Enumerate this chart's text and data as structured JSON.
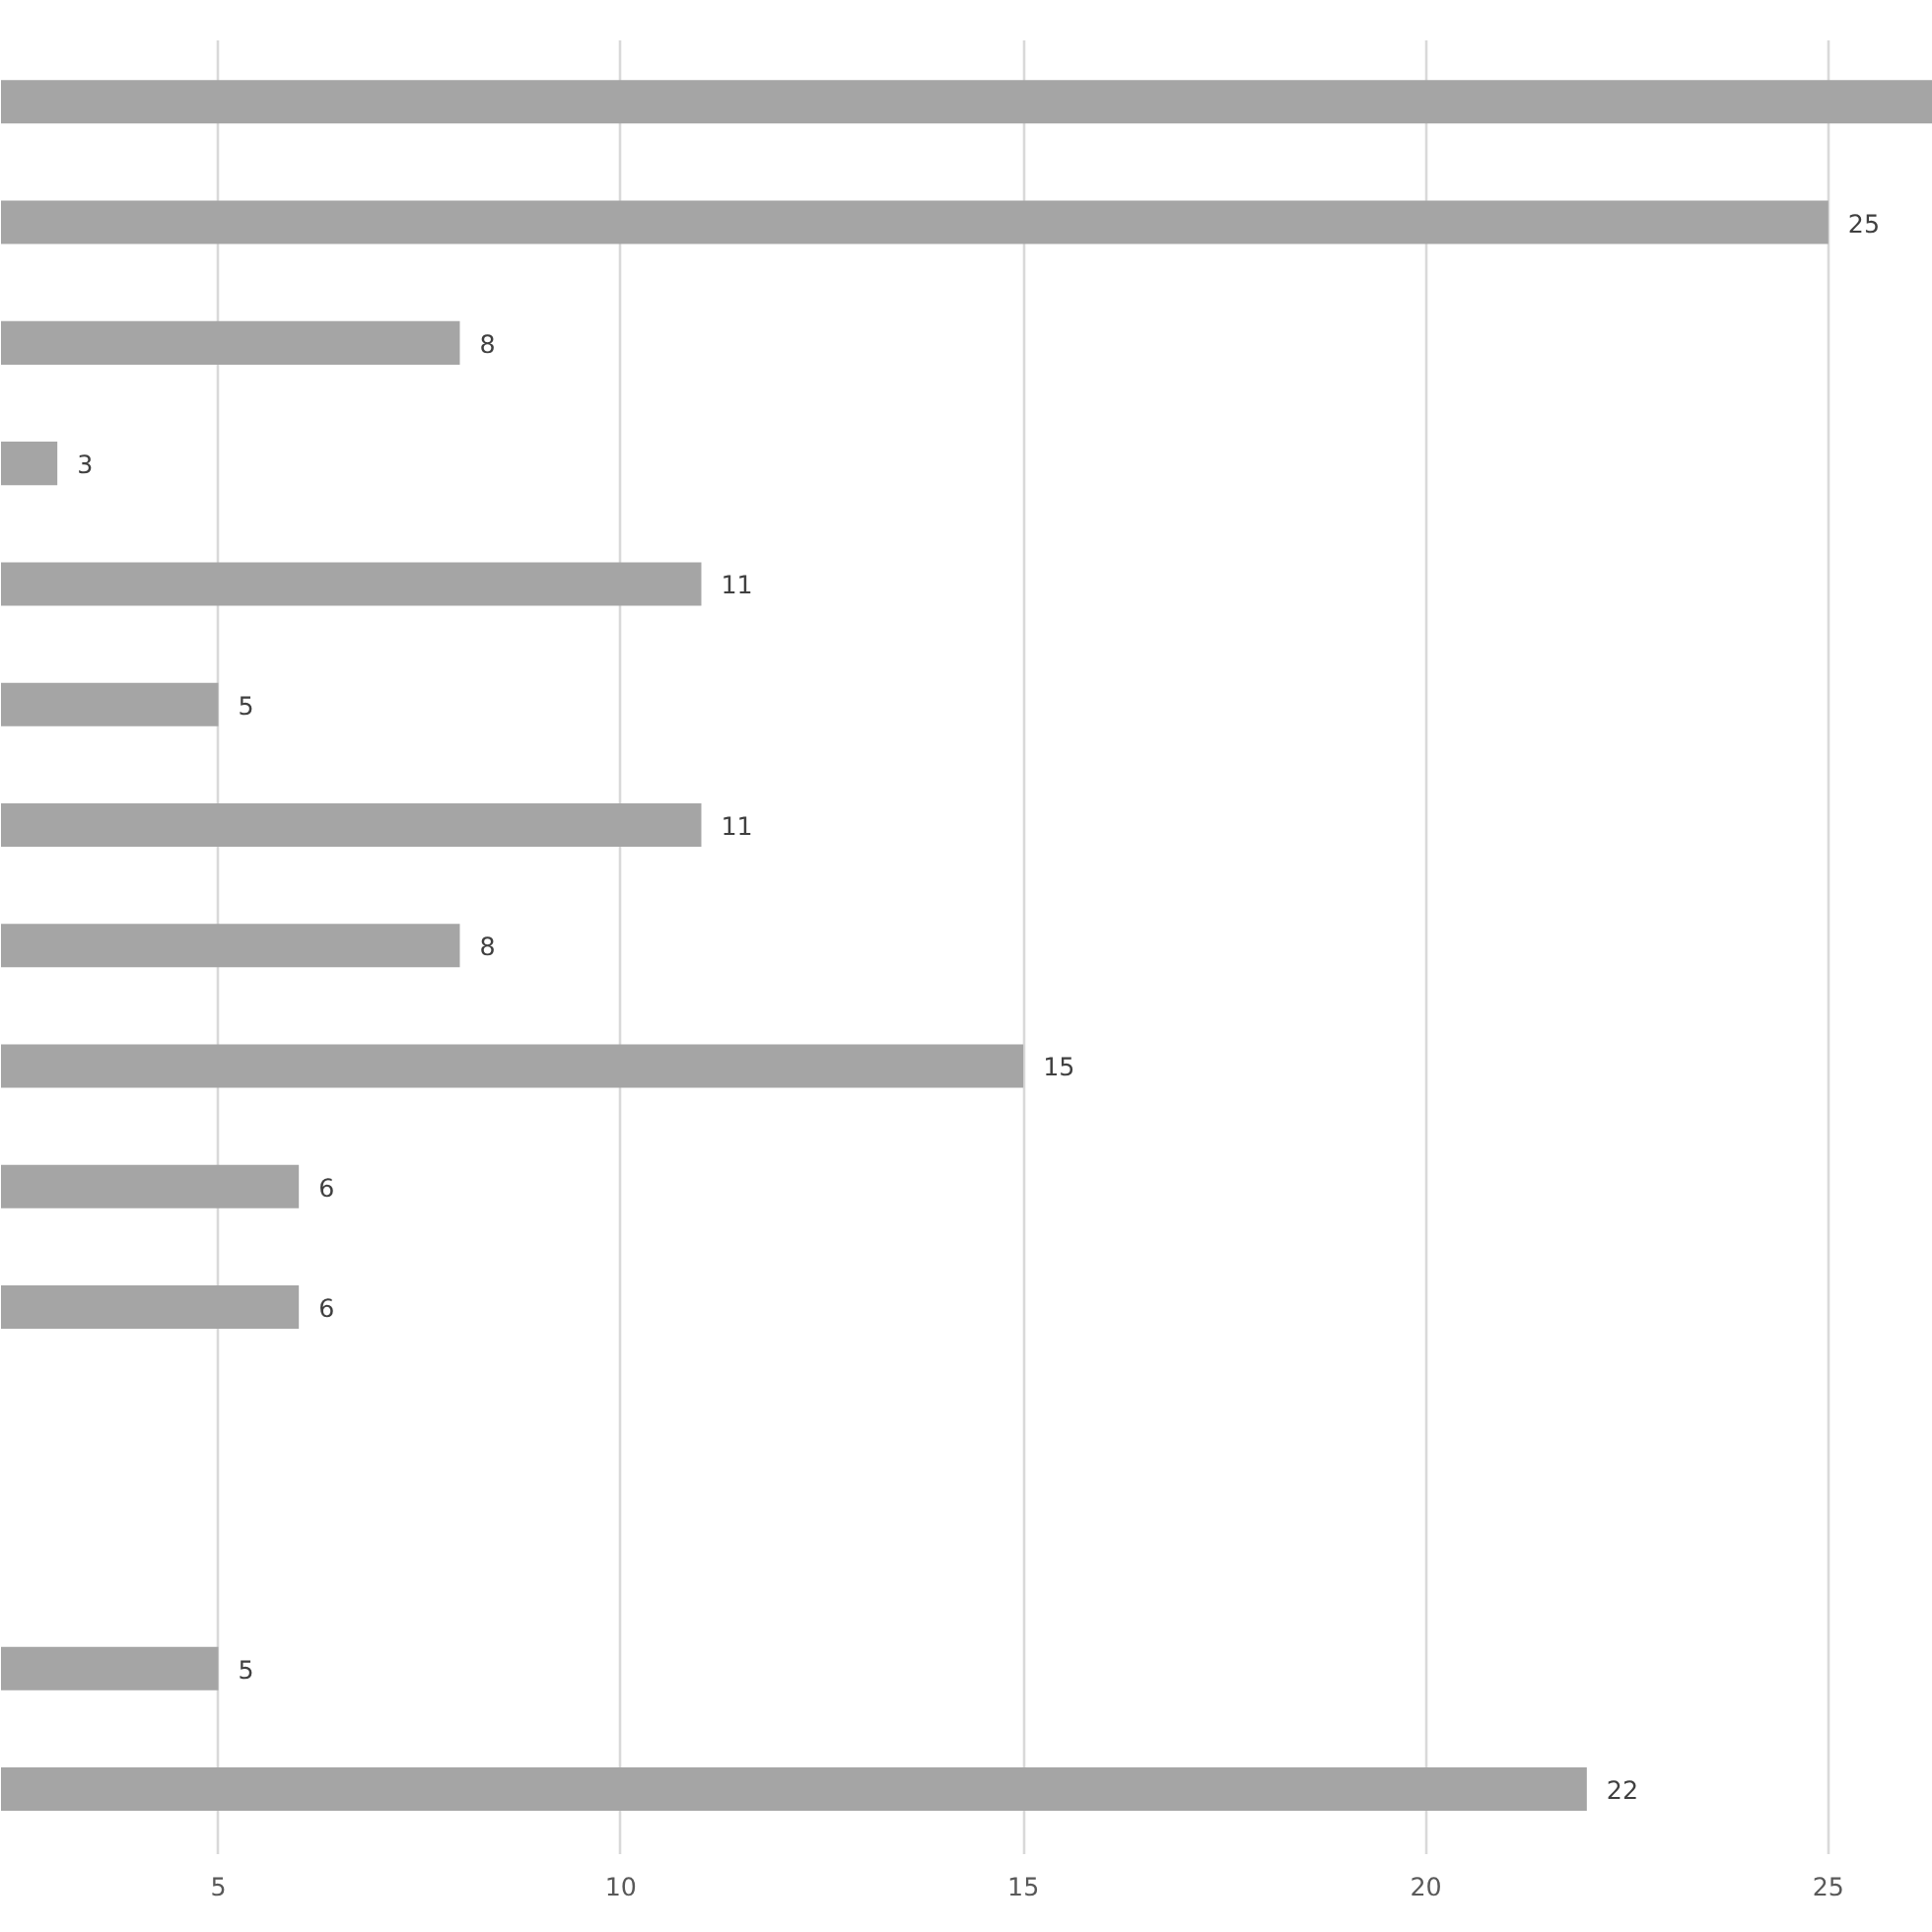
{
  "chart_data": {
    "type": "bar",
    "orientation": "horizontal",
    "categories": [
      null,
      null,
      null,
      null,
      null,
      null,
      null,
      null,
      null,
      null,
      null,
      null,
      null,
      null,
      null
    ],
    "values": [
      26.3,
      25,
      8,
      3,
      11,
      5,
      11,
      8,
      15,
      6,
      6,
      null,
      null,
      5,
      22
    ],
    "value_labels": [
      null,
      "25",
      "8",
      "3",
      "11",
      "5",
      "11",
      "8",
      "15",
      "6",
      "6",
      null,
      null,
      "5",
      "22"
    ],
    "color": "#a5a5a5",
    "xlim": [
      2.3,
      26.3
    ],
    "xticks": [
      5,
      10,
      15,
      20,
      25
    ],
    "grid": "x",
    "tick_labels": "x"
  }
}
